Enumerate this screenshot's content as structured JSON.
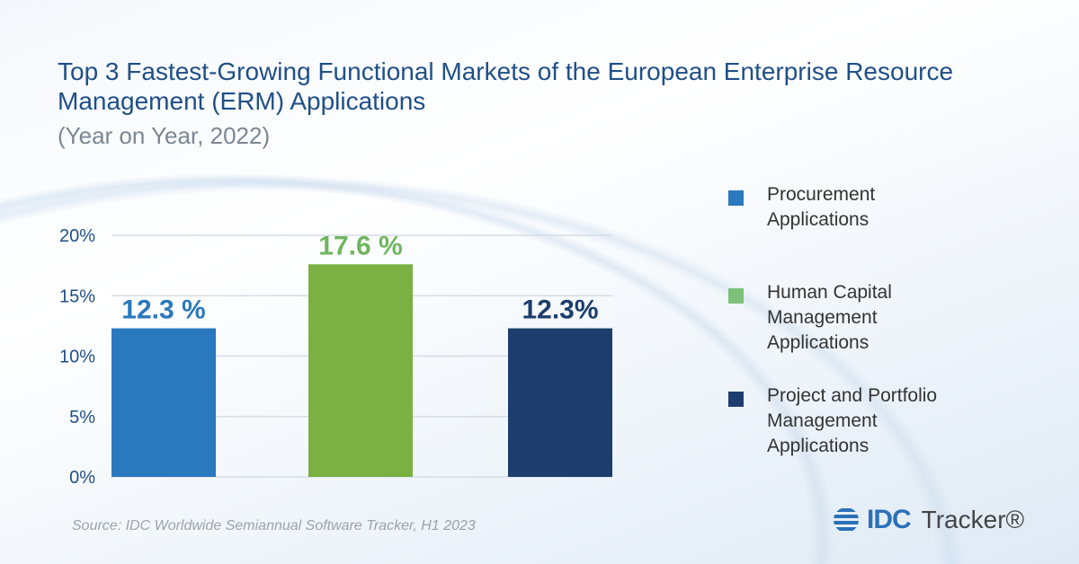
{
  "chart_data": {
    "type": "bar",
    "title": "Top 3 Fastest-Growing Functional Markets of the European Enterprise Resource Management (ERM) Applications",
    "subtitle": "(Year on Year, 2022)",
    "categories": [
      "Procurement Applications",
      "Human Capital Management Applications",
      "Project and Portfolio Management Applications"
    ],
    "values": [
      12.3,
      17.6,
      12.3
    ],
    "data_labels": [
      "12.3 %",
      "17.6 %",
      "12.3%"
    ],
    "colors": [
      "#2a78bd",
      "#7bb042",
      "#1c3d6e"
    ],
    "label_colors": [
      "#2a78bd",
      "#6fb65e",
      "#1c3d6e"
    ],
    "ylim": [
      0,
      20
    ],
    "yticks": [
      0,
      5,
      10,
      15,
      20
    ],
    "ytick_labels": [
      "0%",
      "5%",
      "10%",
      "15%",
      "20%"
    ],
    "grid": true,
    "legend": {
      "placement": "right",
      "entries": [
        "Procurement\nApplications",
        "Human Capital\nManagement\nApplications",
        "Project and Portfolio\nManagement\nApplications"
      ],
      "colors": [
        "#2a78bd",
        "#7cc07a",
        "#1c3d6e"
      ]
    },
    "xlabel": "",
    "ylabel": ""
  },
  "source": "Source: IDC Worldwide Semiannual Software Tracker, H1 2023",
  "logo": {
    "brand": "IDC",
    "product": "Tracker®"
  }
}
